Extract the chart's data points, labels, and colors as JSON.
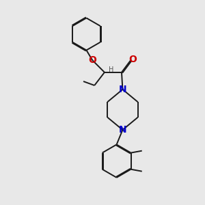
{
  "bg_color": "#e8e8e8",
  "bond_color": "#1a1a1a",
  "N_color": "#0000cc",
  "O_color": "#cc0000",
  "font_size": 8,
  "line_width": 1.4,
  "xlim": [
    0,
    10
  ],
  "ylim": [
    0,
    10
  ]
}
